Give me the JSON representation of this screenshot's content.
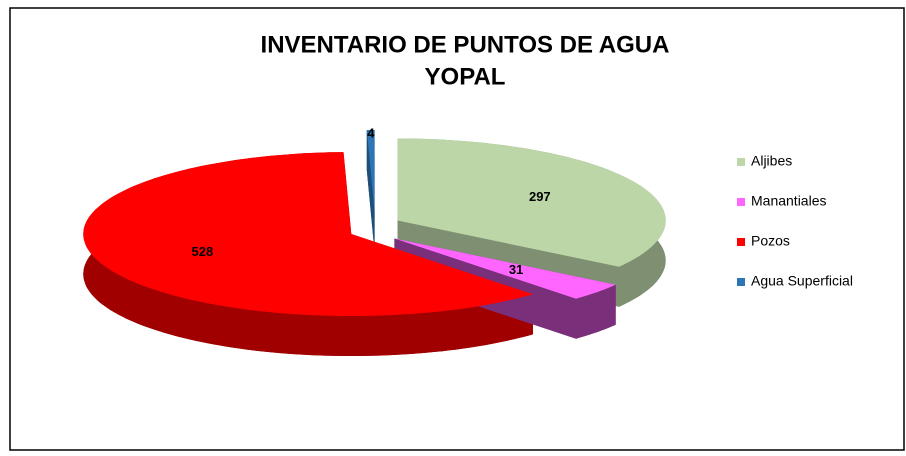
{
  "chart_data": {
    "type": "pie3d",
    "title": [
      "INVENTARIO DE PUNTOS DE AGUA",
      "YOPAL"
    ],
    "categories": [
      "Aljibes",
      "Manantiales",
      "Pozos",
      "Agua Superficial"
    ],
    "values": [
      297,
      31,
      528,
      4
    ],
    "colors": [
      "#bcd6a8",
      "#ff66ff",
      "#ff0000",
      "#2e75b6"
    ],
    "side_colors": [
      "#7f8f72",
      "#7a2f7a",
      "#a00000",
      "#1e4e7a"
    ],
    "legend": "right"
  }
}
